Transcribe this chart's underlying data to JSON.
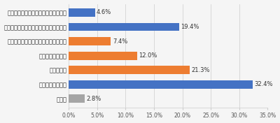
{
  "categories": [
    "話は出ているが進めづらい状況である",
    "話は出ているが進むかどうかわからない",
    "話は出ていて進める方向で動いている",
    "進める予定がある",
    "進めている",
    "進める予定はない",
    "その他"
  ],
  "values": [
    4.6,
    19.4,
    7.4,
    12.0,
    21.3,
    32.4,
    2.8
  ],
  "colors": [
    "#4472c4",
    "#4472c4",
    "#ed7d31",
    "#ed7d31",
    "#ed7d31",
    "#4472c4",
    "#a5a5a5"
  ],
  "xlim": [
    0,
    35
  ],
  "xticks": [
    0,
    5,
    10,
    15,
    20,
    25,
    30,
    35
  ],
  "xtick_labels": [
    "0.0%",
    "5.0%",
    "10.0%",
    "15.0%",
    "20.0%",
    "25.0%",
    "30.0%",
    "35.0%"
  ],
  "label_fontsize": 6.0,
  "value_fontsize": 6.0,
  "tick_fontsize": 5.5,
  "bar_height": 0.58,
  "bg_color": "#f5f5f5",
  "grid_color": "#cccccc"
}
